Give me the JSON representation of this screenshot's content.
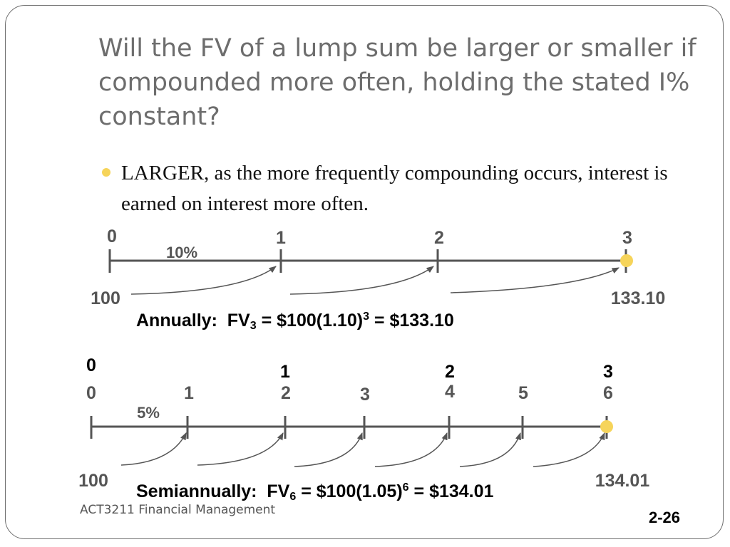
{
  "slide": {
    "title": "Will the FV of a lump sum be larger or smaller if compounded more often, holding the stated I% constant?",
    "bullet": "LARGER, as the more frequently compounding occurs, interest is earned on interest more often.",
    "footer_course": "ACT3211 Financial Management",
    "page_number": "2-26",
    "accent_color": "#f6d45a"
  },
  "annual": {
    "periods": [
      "0",
      "1",
      "2",
      "3"
    ],
    "rate": "10%",
    "pv": "100",
    "fv": "133.10",
    "formula": {
      "label": "Annually:  FV",
      "fv_sub": "3",
      "middle": " = $100(1.10)",
      "exp": "3",
      "result": " = $133.10"
    }
  },
  "semiannual": {
    "years": [
      "0",
      "1",
      "2",
      "3"
    ],
    "periods": [
      "0",
      "1",
      "2",
      "3",
      "4",
      "5",
      "6"
    ],
    "rate": "5%",
    "pv": "100",
    "fv": "134.01",
    "formula": {
      "label": "Semiannually:  FV",
      "fv_sub": "6",
      "middle": " = $100(1.05)",
      "exp": "6",
      "result": " = $134.01"
    }
  }
}
